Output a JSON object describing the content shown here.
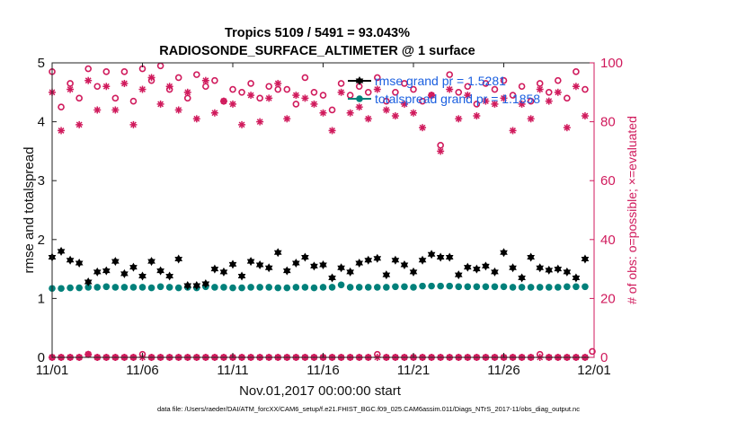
{
  "chart_data": {
    "type": "scatter",
    "title": "Tropics 5109 / 5491 = 93.043%",
    "subtitle": "RADIOSONDE_SURFACE_ALTIMETER @ 1 surface",
    "xlabel": "Nov.01,2017 00:00:00 start",
    "ylabel": "rmse and totalspread",
    "ylabel_right": "# of obs: o=possible; ×=evaluated",
    "footer": "data file: /Users/raeder/DAI/ATM_forcXX/CAM6_setup/f.e21.FHIST_BGC.f09_025.CAM6assim.011/Diags_NTrS_2017-11/obs_diag_output.nc",
    "x_tick_labels": [
      "11/01",
      "11/06",
      "11/11",
      "11/16",
      "11/21",
      "11/26",
      "12/01"
    ],
    "y_tick_labels": [
      "0",
      "1",
      "2",
      "3",
      "4",
      "5"
    ],
    "y2_tick_labels": [
      "0",
      "20",
      "40",
      "60",
      "80",
      "100"
    ],
    "xlim": [
      0,
      30
    ],
    "ylim": [
      0,
      5
    ],
    "y2lim": [
      0,
      100
    ],
    "legend": [
      {
        "label": "rmse grand pr = 1.5281",
        "color": "#000000",
        "marker": "hexagram"
      },
      {
        "label": "totalspread grand pr = 1.1858",
        "color": "#00807a",
        "marker": "circle"
      }
    ],
    "colors": {
      "rmse": "#000000",
      "spread": "#00807a",
      "count": "#d01a5c",
      "legend_text": "#1a5fe0"
    },
    "series": [
      {
        "name": "rmse",
        "axis": "left",
        "marker": "hexagram",
        "color": "#000000",
        "x": [
          0.0,
          0.5,
          1.0,
          1.5,
          2.0,
          2.5,
          3.0,
          3.5,
          4.0,
          4.5,
          5.0,
          5.5,
          6.0,
          6.5,
          7.0,
          7.5,
          8.0,
          8.5,
          9.0,
          9.5,
          10.0,
          10.5,
          11.0,
          11.5,
          12.0,
          12.5,
          13.0,
          13.5,
          14.0,
          14.5,
          15.0,
          15.5,
          16.0,
          16.5,
          17.0,
          17.5,
          18.0,
          18.5,
          19.0,
          19.5,
          20.0,
          20.5,
          21.0,
          21.5,
          22.0,
          22.5,
          23.0,
          23.5,
          24.0,
          24.5,
          25.0,
          25.5,
          26.0,
          26.5,
          27.0,
          27.5,
          28.0,
          28.5,
          29.0,
          29.5
        ],
        "y": [
          1.7,
          1.8,
          1.65,
          1.6,
          1.28,
          1.45,
          1.47,
          1.63,
          1.42,
          1.53,
          1.38,
          1.63,
          1.47,
          1.38,
          1.67,
          1.22,
          1.22,
          1.25,
          1.5,
          1.45,
          1.58,
          1.38,
          1.63,
          1.57,
          1.52,
          1.78,
          1.47,
          1.6,
          1.7,
          1.55,
          1.57,
          1.35,
          1.52,
          1.45,
          1.6,
          1.65,
          1.68,
          1.4,
          1.65,
          1.57,
          1.45,
          1.65,
          1.75,
          1.7,
          1.7,
          1.4,
          1.53,
          1.5,
          1.55,
          1.45,
          1.78,
          1.52,
          1.35,
          1.7,
          1.52,
          1.48,
          1.5,
          1.45,
          1.35,
          1.67
        ]
      },
      {
        "name": "totalspread",
        "axis": "left",
        "marker": "circle",
        "color": "#00807a",
        "x": [
          0.0,
          0.5,
          1.0,
          1.5,
          2.0,
          2.5,
          3.0,
          3.5,
          4.0,
          4.5,
          5.0,
          5.5,
          6.0,
          6.5,
          7.0,
          7.5,
          8.0,
          8.5,
          9.0,
          9.5,
          10.0,
          10.5,
          11.0,
          11.5,
          12.0,
          12.5,
          13.0,
          13.5,
          14.0,
          14.5,
          15.0,
          15.5,
          16.0,
          16.5,
          17.0,
          17.5,
          18.0,
          18.5,
          19.0,
          19.5,
          20.0,
          20.5,
          21.0,
          21.5,
          22.0,
          22.5,
          23.0,
          23.5,
          24.0,
          24.5,
          25.0,
          25.5,
          26.0,
          26.5,
          27.0,
          27.5,
          28.0,
          28.5,
          29.0,
          29.5
        ],
        "y": [
          1.17,
          1.17,
          1.18,
          1.18,
          1.19,
          1.19,
          1.2,
          1.19,
          1.19,
          1.19,
          1.19,
          1.18,
          1.2,
          1.19,
          1.18,
          1.19,
          1.18,
          1.2,
          1.19,
          1.19,
          1.18,
          1.18,
          1.19,
          1.19,
          1.19,
          1.18,
          1.18,
          1.19,
          1.19,
          1.18,
          1.19,
          1.19,
          1.23,
          1.19,
          1.19,
          1.19,
          1.19,
          1.19,
          1.2,
          1.2,
          1.19,
          1.21,
          1.21,
          1.21,
          1.21,
          1.2,
          1.2,
          1.2,
          1.2,
          1.2,
          1.2,
          1.19,
          1.19,
          1.19,
          1.19,
          1.19,
          1.19,
          1.2,
          1.2,
          1.2
        ]
      },
      {
        "name": "obs possible",
        "axis": "right",
        "marker": "open-circle",
        "color": "#d01a5c",
        "x": [
          0.0,
          0.5,
          1.0,
          1.5,
          2.0,
          2.5,
          3.0,
          3.5,
          4.0,
          4.5,
          5.0,
          5.5,
          6.0,
          6.5,
          7.0,
          7.5,
          8.0,
          8.5,
          9.0,
          9.5,
          10.0,
          10.5,
          11.0,
          11.5,
          12.0,
          12.5,
          13.0,
          13.5,
          14.0,
          14.5,
          15.0,
          15.5,
          16.0,
          16.5,
          17.0,
          17.5,
          18.0,
          18.5,
          19.0,
          19.5,
          20.0,
          20.5,
          21.0,
          21.5,
          22.0,
          22.5,
          23.0,
          23.5,
          24.0,
          24.5,
          25.0,
          25.5,
          26.0,
          26.5,
          27.0,
          27.5,
          28.0,
          28.5,
          29.0,
          29.5
        ],
        "y": [
          97,
          85,
          93,
          88,
          98,
          92,
          97,
          88,
          97,
          87,
          98,
          94,
          99,
          91,
          95,
          88,
          96,
          92,
          94,
          87,
          91,
          90,
          93,
          88,
          92,
          91,
          91,
          86,
          95,
          90,
          89,
          84,
          93,
          89,
          92,
          90,
          95,
          87,
          90,
          93,
          91,
          87,
          89,
          72,
          96,
          90,
          92,
          86,
          93,
          91,
          94,
          89,
          92,
          87,
          93,
          90,
          94,
          88,
          97,
          91
        ]
      },
      {
        "name": "obs evaluated",
        "axis": "right",
        "marker": "asterisk",
        "color": "#d01a5c",
        "x": [
          0.0,
          0.5,
          1.0,
          1.5,
          2.0,
          2.5,
          3.0,
          3.5,
          4.0,
          4.5,
          5.0,
          5.5,
          6.0,
          6.5,
          7.0,
          7.5,
          8.0,
          8.5,
          9.0,
          9.5,
          10.0,
          10.5,
          11.0,
          11.5,
          12.0,
          12.5,
          13.0,
          13.5,
          14.0,
          14.5,
          15.0,
          15.5,
          16.0,
          16.5,
          17.0,
          17.5,
          18.0,
          18.5,
          19.0,
          19.5,
          20.0,
          20.5,
          21.0,
          21.5,
          22.0,
          22.5,
          23.0,
          23.5,
          24.0,
          24.5,
          25.0,
          25.5,
          26.0,
          26.5,
          27.0,
          27.5,
          28.0,
          28.5,
          29.0,
          29.5
        ],
        "y": [
          90,
          77,
          91,
          79,
          94,
          84,
          92,
          84,
          93,
          79,
          91,
          95,
          86,
          92,
          84,
          90,
          81,
          94,
          83,
          87,
          86,
          79,
          89,
          80,
          88,
          93,
          81,
          89,
          88,
          86,
          83,
          77,
          90,
          83,
          85,
          81,
          91,
          84,
          82,
          86,
          83,
          78,
          89,
          70,
          91,
          81,
          89,
          82,
          87,
          86,
          88,
          77,
          86,
          81,
          91,
          87,
          90,
          78,
          92,
          82
        ]
      },
      {
        "name": "obs possible (zero)",
        "axis": "right",
        "marker": "open-circle",
        "color": "#d01a5c",
        "x": [
          0.0,
          0.5,
          1.0,
          1.5,
          2.0,
          2.5,
          3.0,
          3.5,
          4.0,
          4.5,
          5.0,
          5.5,
          6.0,
          6.5,
          7.0,
          7.5,
          8.0,
          8.5,
          9.0,
          9.5,
          10.0,
          10.5,
          11.0,
          11.5,
          12.0,
          12.5,
          13.0,
          13.5,
          14.0,
          14.5,
          15.0,
          15.5,
          16.0,
          16.5,
          17.0,
          17.5,
          18.0,
          18.5,
          19.0,
          19.5,
          20.0,
          20.5,
          21.0,
          21.5,
          22.0,
          22.5,
          23.0,
          23.5,
          24.0,
          24.5,
          25.0,
          25.5,
          26.0,
          26.5,
          27.0,
          27.5,
          28.0,
          28.5,
          29.0,
          29.5,
          29.9
        ],
        "y": [
          0,
          0,
          0,
          0,
          1,
          0,
          0,
          0,
          0,
          0,
          1,
          0,
          0,
          0,
          0,
          0,
          0,
          0,
          0,
          0,
          0,
          0,
          0,
          0,
          0,
          0,
          0,
          0,
          0,
          0,
          0,
          0,
          0,
          0,
          0,
          0,
          1,
          0,
          0,
          0,
          0,
          0,
          0,
          0,
          0,
          0,
          0,
          0,
          0,
          0,
          0,
          0,
          0,
          0,
          1,
          0,
          0,
          0,
          0,
          0,
          2
        ]
      },
      {
        "name": "obs evaluated (zero)",
        "axis": "right",
        "marker": "asterisk",
        "color": "#d01a5c",
        "x": [
          0.0,
          0.5,
          1.0,
          1.5,
          2.0,
          2.5,
          3.0,
          3.5,
          4.0,
          4.5,
          5.0,
          5.5,
          6.0,
          6.5,
          7.0,
          7.5,
          8.0,
          8.5,
          9.0,
          9.5,
          10.0,
          10.5,
          11.0,
          11.5,
          12.0,
          12.5,
          13.0,
          13.5,
          14.0,
          14.5,
          15.0,
          15.5,
          16.0,
          16.5,
          17.0,
          17.5,
          18.0,
          18.5,
          19.0,
          19.5,
          20.0,
          20.5,
          21.0,
          21.5,
          22.0,
          22.5,
          23.0,
          23.5,
          24.0,
          24.5,
          25.0,
          25.5,
          26.0,
          26.5,
          27.0,
          27.5,
          28.0,
          28.5,
          29.0,
          29.5
        ],
        "y": [
          0,
          0,
          0,
          0,
          1,
          0,
          0,
          0,
          0,
          0,
          0,
          0,
          0,
          0,
          0,
          0,
          0,
          0,
          0,
          0,
          0,
          0,
          0,
          0,
          0,
          0,
          0,
          0,
          0,
          0,
          0,
          0,
          0,
          0,
          0,
          0,
          0,
          0,
          0,
          0,
          0,
          0,
          0,
          0,
          0,
          0,
          0,
          0,
          0,
          0,
          0,
          0,
          0,
          0,
          0,
          0,
          0,
          0,
          0,
          0
        ]
      }
    ]
  }
}
